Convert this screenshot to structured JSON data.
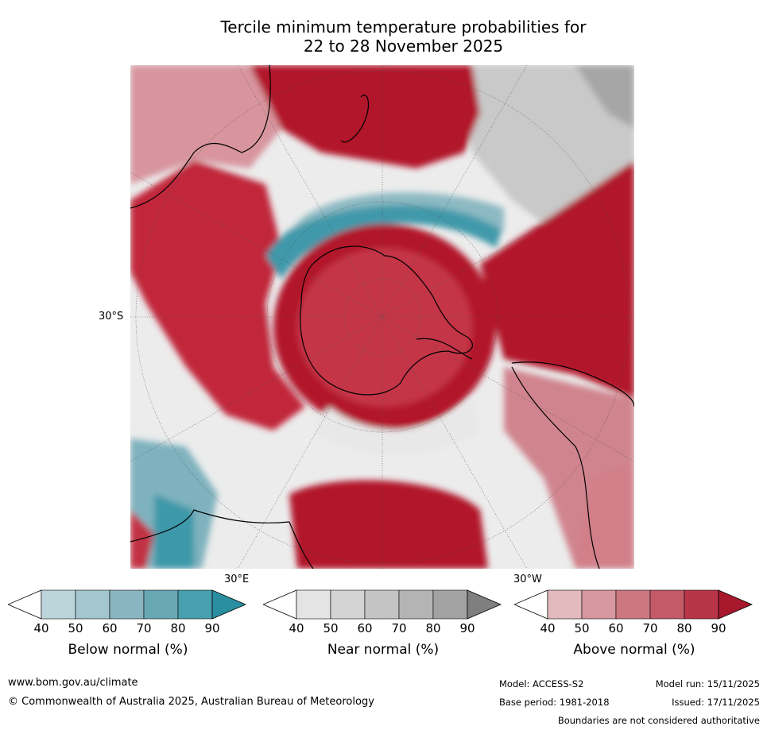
{
  "title": {
    "line1": "Tercile minimum temperature probabilities for",
    "line2": "22 to 28 November 2025"
  },
  "map": {
    "lat_labels": [
      "30°S"
    ],
    "lon_labels": [
      "30°E",
      "30°W"
    ],
    "colors": {
      "ocean_red": "#b2182b",
      "land_red": "#c6303f",
      "teal": "#3a97a8",
      "gray": "#a8a8a8",
      "light_gray": "#dedede",
      "coast": "#000000"
    }
  },
  "colorbars": [
    {
      "name": "Below normal (%)",
      "ticks": [
        "40",
        "50",
        "60",
        "70",
        "80",
        "90"
      ],
      "colors": [
        "#ffffff",
        "#bcd5db",
        "#a4c6cd",
        "#89b5c0",
        "#68a8b5",
        "#47a0ae",
        "#2a8ea1"
      ]
    },
    {
      "name": "Near normal (%)",
      "ticks": [
        "40",
        "50",
        "60",
        "70",
        "80",
        "90"
      ],
      "colors": [
        "#ffffff",
        "#e4e4e4",
        "#d4d4d4",
        "#c4c4c4",
        "#b4b4b4",
        "#a2a2a2",
        "#7f7f7f"
      ]
    },
    {
      "name": "Above normal (%)",
      "ticks": [
        "40",
        "50",
        "60",
        "70",
        "80",
        "90"
      ],
      "colors": [
        "#ffffff",
        "#e2b9bd",
        "#d7979f",
        "#cd7781",
        "#c45968",
        "#b83548",
        "#a8182d"
      ]
    }
  ],
  "footer": {
    "website": "www.bom.gov.au/climate",
    "copyright": "© Commonwealth of Australia 2025, Australian Bureau of Meteorology",
    "model": "Model: ACCESS-S2",
    "base_period": "Base period: 1981-2018",
    "model_run": "Model run: 15/11/2025",
    "issued": "Issued: 17/11/2025",
    "disclaimer": "Boundaries are not considered authoritative"
  }
}
